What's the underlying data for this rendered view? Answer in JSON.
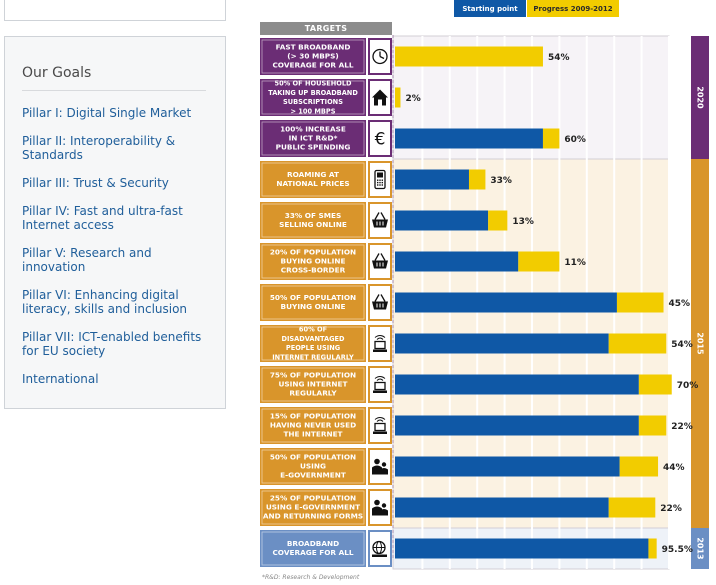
{
  "sidebar": {
    "title": "Our Goals",
    "items": [
      {
        "label": "Pillar I: Digital Single Market"
      },
      {
        "label": "Pillar II: Interoperability & Standards"
      },
      {
        "label": "Pillar III: Trust & Security"
      },
      {
        "label": "Pillar IV: Fast and ultra-fast Internet access"
      },
      {
        "label": "Pillar V: Research and innovation"
      },
      {
        "label": "Pillar VI: Enhancing digital literacy, skills and inclusion"
      },
      {
        "label": "Pillar VII: ICT-enabled benefits for EU society"
      },
      {
        "label": "International"
      }
    ]
  },
  "chart_data": {
    "type": "bar",
    "orientation": "horizontal",
    "stacked": true,
    "header": "TARGETS",
    "legend": [
      "Starting point",
      "Progress 2009-2012"
    ],
    "colors": {
      "starting": "#0f58a6",
      "progress": "#f2cc00",
      "group_2020": "#6b2d75",
      "group_2015": "#d9952b",
      "group_2013": "#6b8fc4",
      "panel_2020": "#f6f3f7",
      "panel_2015": "#fbf2e2",
      "panel_2013": "#eef2f8"
    },
    "groups": [
      {
        "name": "2020",
        "rows": 3
      },
      {
        "name": "2015",
        "rows": 9
      },
      {
        "name": "2013",
        "rows": 1
      }
    ],
    "categories": [
      {
        "label": [
          "FAST BROADBAND",
          "(> 30 MBPS)",
          "COVERAGE FOR ALL"
        ],
        "icon": "clock-icon",
        "group": "2020",
        "start": 0,
        "progress": 54,
        "label_text": "54%"
      },
      {
        "label": [
          "50% OF HOUSEHOLD",
          "TAKING UP BROADBAND",
          "SUBSCRIPTIONS",
          "> 100 MBPS"
        ],
        "icon": "house-icon",
        "group": "2020",
        "start": 0,
        "progress": 2,
        "label_text": "2%"
      },
      {
        "label": [
          "100% INCREASE",
          "IN ICT R&D*",
          "PUBLIC SPENDING"
        ],
        "icon": "euro-icon",
        "group": "2020",
        "start": 54,
        "progress": 6,
        "label_text": "60%"
      },
      {
        "label": [
          "ROAMING AT",
          "NATIONAL PRICES"
        ],
        "icon": "phone-icon",
        "group": "2015",
        "start": 27,
        "progress": 6,
        "label_text": "33%"
      },
      {
        "label": [
          "33% OF SMES",
          "SELLING ONLINE"
        ],
        "icon": "basket-icon",
        "group": "2015",
        "start": 34,
        "progress": 7,
        "label_text": "13%"
      },
      {
        "label": [
          "20% OF POPULATION",
          "BUYING ONLINE",
          "CROSS-BORDER"
        ],
        "icon": "basket-icon",
        "group": "2015",
        "start": 45,
        "progress": 15,
        "label_text": "11%"
      },
      {
        "label": [
          "50% OF POPULATION",
          "BUYING ONLINE"
        ],
        "icon": "basket-icon",
        "group": "2015",
        "start": 81,
        "progress": 17,
        "label_text": "45%"
      },
      {
        "label": [
          "60% OF",
          "DISADVANTAGED",
          "PEOPLE USING",
          "INTERNET REGULARLY"
        ],
        "icon": "computer-wifi-icon",
        "group": "2015",
        "start": 78,
        "progress": 21,
        "label_text": "54%"
      },
      {
        "label": [
          "75% OF POPULATION",
          "USING INTERNET",
          "REGULARLY"
        ],
        "icon": "computer-wifi-icon",
        "group": "2015",
        "start": 89,
        "progress": 12,
        "label_text": "70%"
      },
      {
        "label": [
          "15% OF POPULATION",
          "HAVING NEVER USED",
          "THE INTERNET"
        ],
        "icon": "computer-wifi-icon",
        "group": "2015",
        "start": 89,
        "progress": 10,
        "label_text": "22%"
      },
      {
        "label": [
          "50% OF POPULATION",
          "USING",
          "E-GOVERNMENT"
        ],
        "icon": "citizen-icon",
        "group": "2015",
        "start": 82,
        "progress": 14,
        "label_text": "44%"
      },
      {
        "label": [
          "25% OF POPULATION",
          "USING E-GOVERNMENT",
          "AND RETURNING FORMS"
        ],
        "icon": "citizen-icon",
        "group": "2015",
        "start": 78,
        "progress": 17,
        "label_text": "22%"
      },
      {
        "label": [
          "BROADBAND",
          "COVERAGE FOR ALL"
        ],
        "icon": "globe-icon",
        "group": "2013",
        "start": 92.5,
        "progress": 3,
        "label_text": "95.5%"
      }
    ],
    "xlim": [
      0,
      100
    ],
    "grid": true,
    "footnote": "*R&D: Research & Development"
  }
}
